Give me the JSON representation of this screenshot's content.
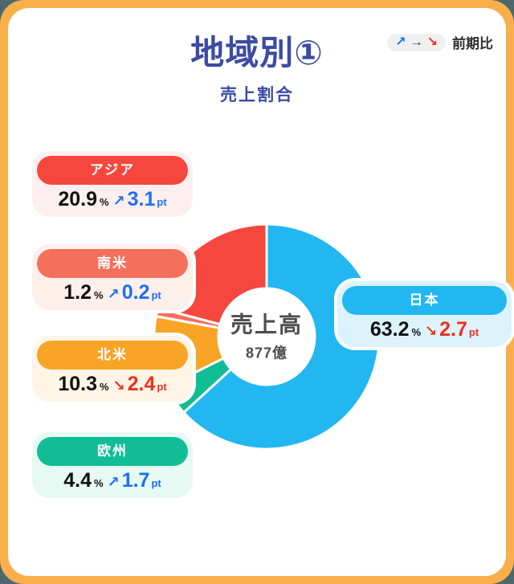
{
  "page": {
    "title": "地域別①",
    "subtitle": "売上割合",
    "legend": {
      "up_arrow": "↗",
      "right_arrow": "→",
      "down_arrow": "↘",
      "label": "前期比"
    }
  },
  "units": {
    "percent": "%",
    "point": "pt"
  },
  "colors": {
    "frame": "#F9AE4C",
    "card_background": "#FFFFFF",
    "title": "#3C4BA3",
    "trend_up": "#1D6FF5",
    "trend_down": "#EF2F1D"
  },
  "chart_data": {
    "type": "pie",
    "variant": "donut",
    "title": "地域別①",
    "subtitle": "売上割合",
    "center_label": "売上高",
    "center_value": "877億",
    "comparison_note": "前期比",
    "start_angle_deg": 0,
    "direction": "clockwise",
    "segments": [
      {
        "label": "日本",
        "value": 63.2,
        "delta": 2.7,
        "trend": "down",
        "arrow": "↘",
        "color": "#22B7F0",
        "tint": "#DCF3FC"
      },
      {
        "label": "欧州",
        "value": 4.4,
        "delta": 1.7,
        "trend": "up",
        "arrow": "↗",
        "color": "#10BD95",
        "tint": "#E6F9F3"
      },
      {
        "label": "北米",
        "value": 10.3,
        "delta": 2.4,
        "trend": "down",
        "arrow": "↘",
        "color": "#F8A426",
        "tint": "#FEF5E6"
      },
      {
        "label": "南米",
        "value": 1.2,
        "delta": 0.2,
        "trend": "up",
        "arrow": "↗",
        "color": "#F4705C",
        "tint": "#FDF0EB"
      },
      {
        "label": "アジア",
        "value": 20.9,
        "delta": 3.1,
        "trend": "up",
        "arrow": "↗",
        "color": "#F5473D",
        "tint": "#FDEFEF"
      }
    ]
  }
}
